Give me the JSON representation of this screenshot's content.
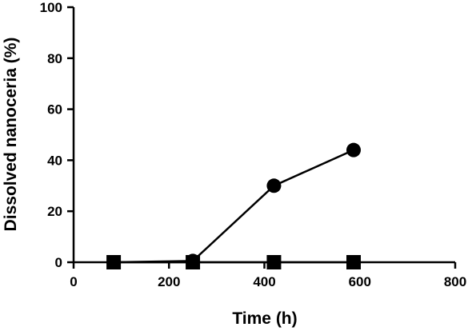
{
  "chart_data": {
    "type": "line",
    "title": "",
    "xlabel": "Time (h)",
    "ylabel": "Dissolved nanoceria (%)",
    "xlim": [
      0,
      800
    ],
    "ylim": [
      0,
      100
    ],
    "x_ticks": [
      0,
      200,
      400,
      600,
      800
    ],
    "y_ticks": [
      0,
      20,
      40,
      60,
      80,
      100
    ],
    "x_tick_labels": [
      "0",
      "200",
      "400",
      "600",
      "800"
    ],
    "y_tick_labels": [
      "0",
      "20",
      "40",
      "60",
      "80",
      "100"
    ],
    "grid": false,
    "series": [
      {
        "marker": "circle",
        "color": "#000000",
        "x": [
          84,
          250,
          420,
          587
        ],
        "y": [
          0,
          0.5,
          30,
          44
        ]
      },
      {
        "marker": "square",
        "color": "#000000",
        "x": [
          84,
          250,
          420,
          587
        ],
        "y": [
          0,
          0,
          0,
          0
        ]
      }
    ]
  }
}
